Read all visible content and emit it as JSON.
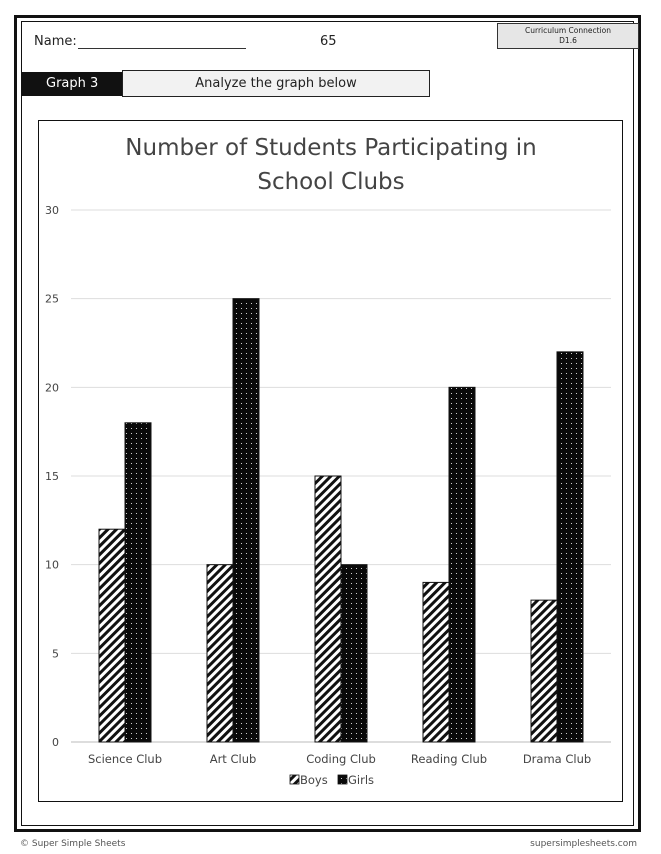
{
  "header": {
    "name_label": "Name:",
    "page_number": "65",
    "curriculum_line1": "Curriculum Connection",
    "curriculum_line2": "D1.6",
    "graph_tag": "Graph 3",
    "instruction": "Analyze the graph below"
  },
  "footer": {
    "copyright": "© Super Simple Sheets",
    "website": "supersimplesheets.com"
  },
  "chart_data": {
    "type": "bar",
    "title": "Number of Students Participating in School Clubs",
    "title_lines": [
      "Number of Students Participating in",
      "School Clubs"
    ],
    "categories": [
      "Science Club",
      "Art Club",
      "Coding Club",
      "Reading Club",
      "Drama Club"
    ],
    "series": [
      {
        "name": "Boys",
        "values": [
          12,
          10,
          15,
          9,
          8
        ],
        "pattern": "diagonal-stripes"
      },
      {
        "name": "Girls",
        "values": [
          18,
          25,
          10,
          20,
          22
        ],
        "pattern": "black-dotted"
      }
    ],
    "xlabel": "",
    "ylabel": "",
    "ylim": [
      0,
      30
    ],
    "yticks": [
      0,
      5,
      10,
      15,
      20,
      25,
      30
    ],
    "grid": true,
    "legend_position": "bottom-center"
  }
}
